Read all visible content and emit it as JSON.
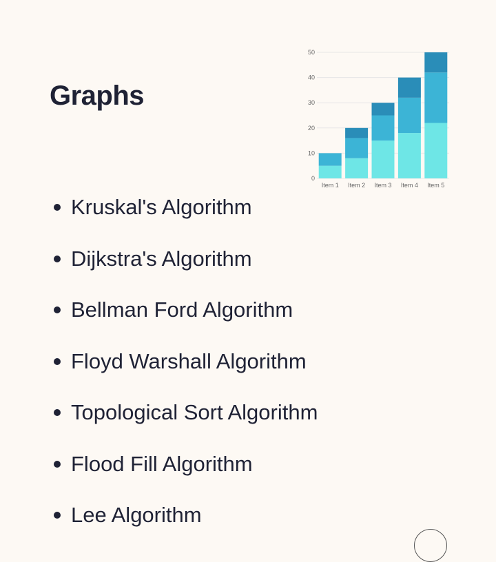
{
  "page": {
    "title": "Graphs"
  },
  "chart_data": {
    "type": "bar",
    "stacked": true,
    "categories": [
      "Item 1",
      "Item 2",
      "Item 3",
      "Item 4",
      "Item 5"
    ],
    "series": [
      {
        "values": [
          5,
          8,
          15,
          18,
          22
        ],
        "color": "#6ee6e6"
      },
      {
        "values": [
          5,
          8,
          10,
          14,
          20
        ],
        "color": "#3cb4d6"
      },
      {
        "values": [
          0,
          4,
          5,
          8,
          8
        ],
        "color": "#2a8db8"
      }
    ],
    "ylim": [
      0,
      50
    ],
    "yticks": [
      0,
      10,
      20,
      30,
      40,
      50
    ],
    "grid": true,
    "legend": "none"
  },
  "algorithms": [
    "Kruskal's Algorithm",
    "Dijkstra's Algorithm",
    "Bellman Ford Algorithm",
    "Floyd Warshall Algorithm",
    "Topological Sort Algorithm",
    "Flood Fill Algorithm",
    "Lee Algorithm"
  ]
}
